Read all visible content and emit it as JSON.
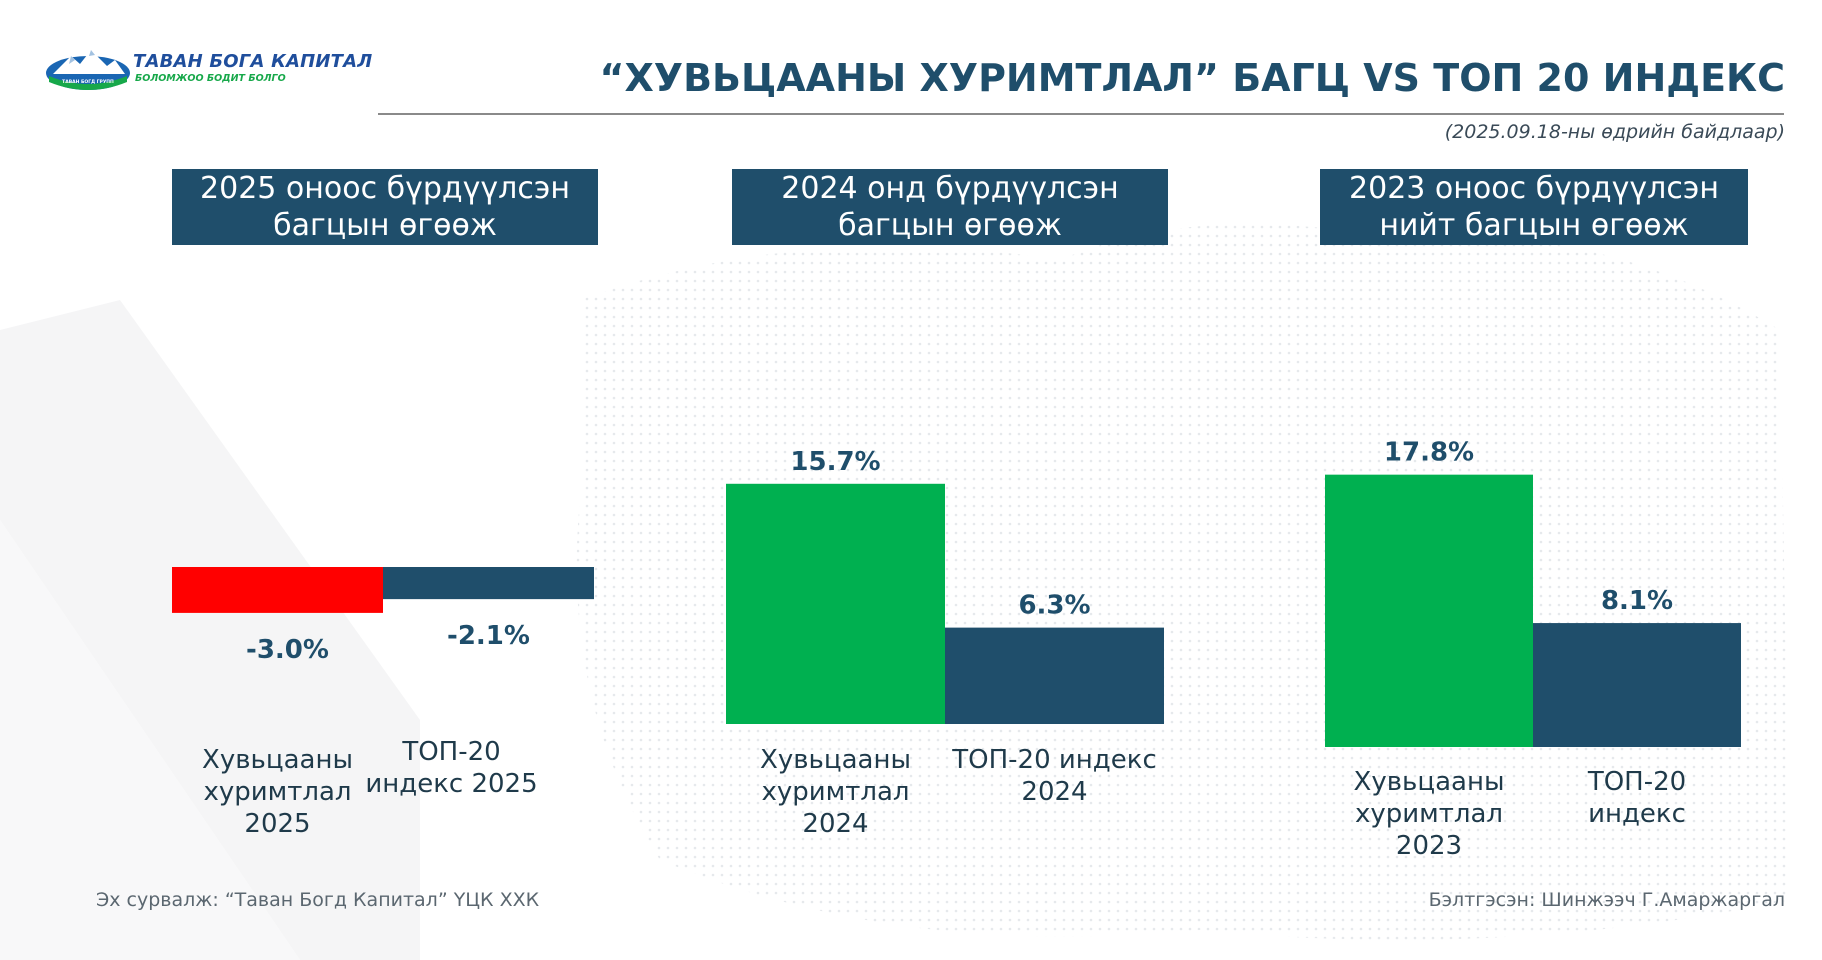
{
  "brand": {
    "name": "ТАВАН БОГА КАПИТАЛ",
    "tagline": "БОЛОМЖОО БОДИТ БОЛГО",
    "logo_badge": "ТАВАН БОГД ГРУПП"
  },
  "title": "“ХУВЬЦААНЫ ХУРИМТЛАЛ” БАГЦ VS ТОП 20 ИНДЕКС",
  "date_note": "(2025.09.18-ны өдрийн байдлаар)",
  "colors": {
    "dark_blue": "#1f4e6b",
    "green": "#00b050",
    "red": "#ff0000"
  },
  "chart_data": [
    {
      "type": "bar",
      "title_lines": [
        "2025 оноос бүрдүүлсэн",
        "багцын өгөөж"
      ],
      "categories": [
        [
          "Хувьцааны",
          "хуримтлал",
          "2025"
        ],
        [
          "ТОП-20",
          "индекс 2025"
        ]
      ],
      "values": [
        -3.0,
        -2.1
      ],
      "value_labels": [
        "-3.0%",
        "-2.1%"
      ],
      "bar_colors": [
        "#ff0000",
        "#1f4e6b"
      ],
      "unit": "%"
    },
    {
      "type": "bar",
      "title_lines": [
        "2024 онд бүрдүүлсэн",
        "багцын өгөөж"
      ],
      "categories": [
        [
          "Хувьцааны",
          "хуримтлал",
          "2024"
        ],
        [
          "ТОП-20 индекс",
          "2024"
        ]
      ],
      "values": [
        15.7,
        6.3
      ],
      "value_labels": [
        "15.7%",
        "6.3%"
      ],
      "bar_colors": [
        "#00b050",
        "#1f4e6b"
      ],
      "unit": "%"
    },
    {
      "type": "bar",
      "title_lines": [
        "2023 оноос бүрдүүлсэн",
        "нийт багцын өгөөж"
      ],
      "categories": [
        [
          "Хувьцааны",
          "хуримтлал",
          "2023"
        ],
        [
          "ТОП-20",
          "индекс"
        ]
      ],
      "values": [
        17.8,
        8.1
      ],
      "value_labels": [
        "17.8%",
        "8.1%"
      ],
      "bar_colors": [
        "#00b050",
        "#1f4e6b"
      ],
      "unit": "%"
    }
  ],
  "footer": {
    "source": "Эх сурвалж: “Таван Богд Капитал” ҮЦК ХХК",
    "prepared_by": "Бэлтгэсэн: Шинжээч Г.Амаржаргал"
  }
}
